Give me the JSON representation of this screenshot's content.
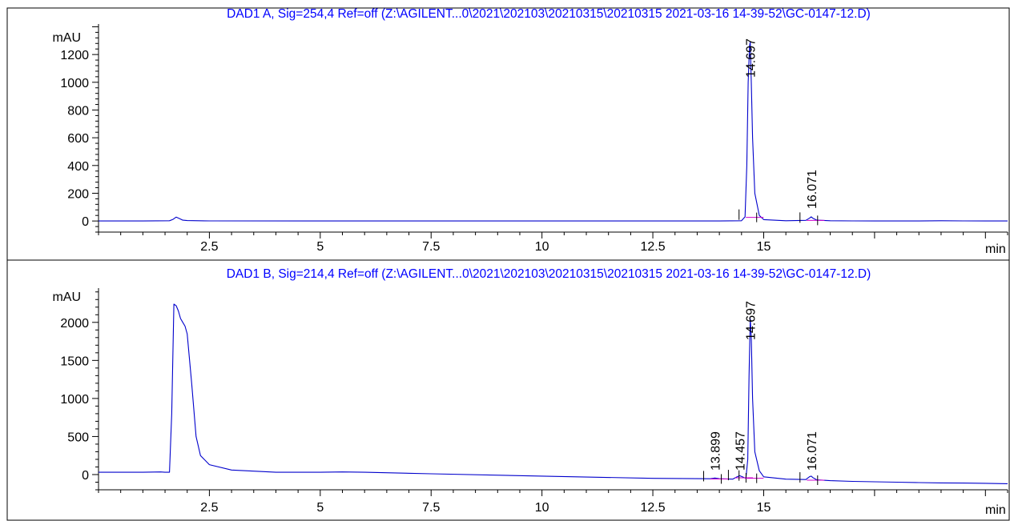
{
  "colors": {
    "trace": "#0000cc",
    "baseline": "#cc00cc",
    "title": "#0000ff",
    "axis": "#000000"
  },
  "chart_data": [
    {
      "type": "line",
      "title": "DAD1 A, Sig=254,4 Ref=off (Z:\\AGILENT...0\\2021\\202103\\20210315\\20210315 2021-03-16 14-39-52\\GC-0147-12.D)",
      "ylabel": "mAU",
      "xlabel": "min",
      "xlim": [
        0.0,
        20.5
      ],
      "ylim": [
        -80,
        1420
      ],
      "x_ticks": [
        "2.5",
        "5",
        "7.5",
        "10",
        "12.5",
        "15"
      ],
      "y_ticks": [
        "0",
        "200",
        "400",
        "600",
        "800",
        "1000",
        "1200"
      ],
      "peak_labels": [
        "14.697",
        "16.071"
      ],
      "series": [
        {
          "x": [
            0,
            1.0,
            1.6,
            1.68,
            1.75,
            1.82,
            1.9,
            2.0,
            2.5,
            5,
            7.5,
            10,
            12.5,
            14.0,
            14.5,
            14.58,
            14.62,
            14.65,
            14.68,
            14.697,
            14.72,
            14.75,
            14.8,
            14.9,
            15.0,
            15.5,
            15.95,
            16.03,
            16.071,
            16.11,
            16.2,
            16.5,
            17.0,
            17.5,
            18.5,
            19.0,
            19.5,
            20.0,
            20.5
          ],
          "y": [
            0,
            0,
            2,
            12,
            28,
            18,
            6,
            3,
            1,
            0,
            0,
            0,
            0,
            0,
            2,
            30,
            400,
            1000,
            1260,
            1290,
            1000,
            600,
            200,
            40,
            10,
            2,
            5,
            20,
            30,
            20,
            6,
            2,
            1,
            0,
            0,
            2,
            1,
            0,
            0
          ]
        }
      ]
    },
    {
      "type": "line",
      "title": "DAD1 B, Sig=214,4 Ref=off (Z:\\AGILENT...0\\2021\\202103\\20210315\\20210315 2021-03-16 14-39-52\\GC-0147-12.D)",
      "ylabel": "mAU",
      "xlabel": "min",
      "xlim": [
        0.0,
        20.5
      ],
      "ylim": [
        -200,
        2450
      ],
      "x_ticks": [
        "2.5",
        "5",
        "7.5",
        "10",
        "12.5",
        "15"
      ],
      "y_ticks": [
        "0",
        "500",
        "1000",
        "1500",
        "2000"
      ],
      "peak_labels": [
        "13.899",
        "14.457",
        "14.697",
        "16.071"
      ],
      "series": [
        {
          "x": [
            0,
            1.0,
            1.4,
            1.5,
            1.6,
            1.65,
            1.7,
            1.75,
            1.8,
            1.85,
            1.9,
            1.95,
            2.0,
            2.1,
            2.2,
            2.3,
            2.5,
            3.0,
            4.0,
            5.0,
            5.5,
            6.0,
            7.5,
            10,
            12.5,
            13.8,
            13.899,
            14.0,
            14.3,
            14.4,
            14.457,
            14.52,
            14.6,
            14.64,
            14.67,
            14.697,
            14.72,
            14.75,
            14.8,
            14.9,
            15.0,
            15.5,
            15.95,
            16.03,
            16.071,
            16.11,
            16.2,
            16.5,
            17.0,
            17.5,
            18.0,
            18.5,
            19.0,
            19.5,
            20.0,
            20.5
          ],
          "y": [
            30,
            30,
            35,
            30,
            30,
            800,
            2240,
            2220,
            2150,
            2050,
            2000,
            1950,
            1850,
            1200,
            500,
            250,
            130,
            60,
            30,
            30,
            35,
            30,
            10,
            -20,
            -50,
            -55,
            -45,
            -55,
            -60,
            -30,
            -15,
            -30,
            -50,
            200,
            1300,
            2050,
            1800,
            1000,
            300,
            50,
            -30,
            -60,
            -65,
            -30,
            -20,
            -40,
            -70,
            -80,
            -90,
            -95,
            -100,
            -105,
            -110,
            -112,
            -115,
            -120
          ]
        }
      ]
    }
  ]
}
